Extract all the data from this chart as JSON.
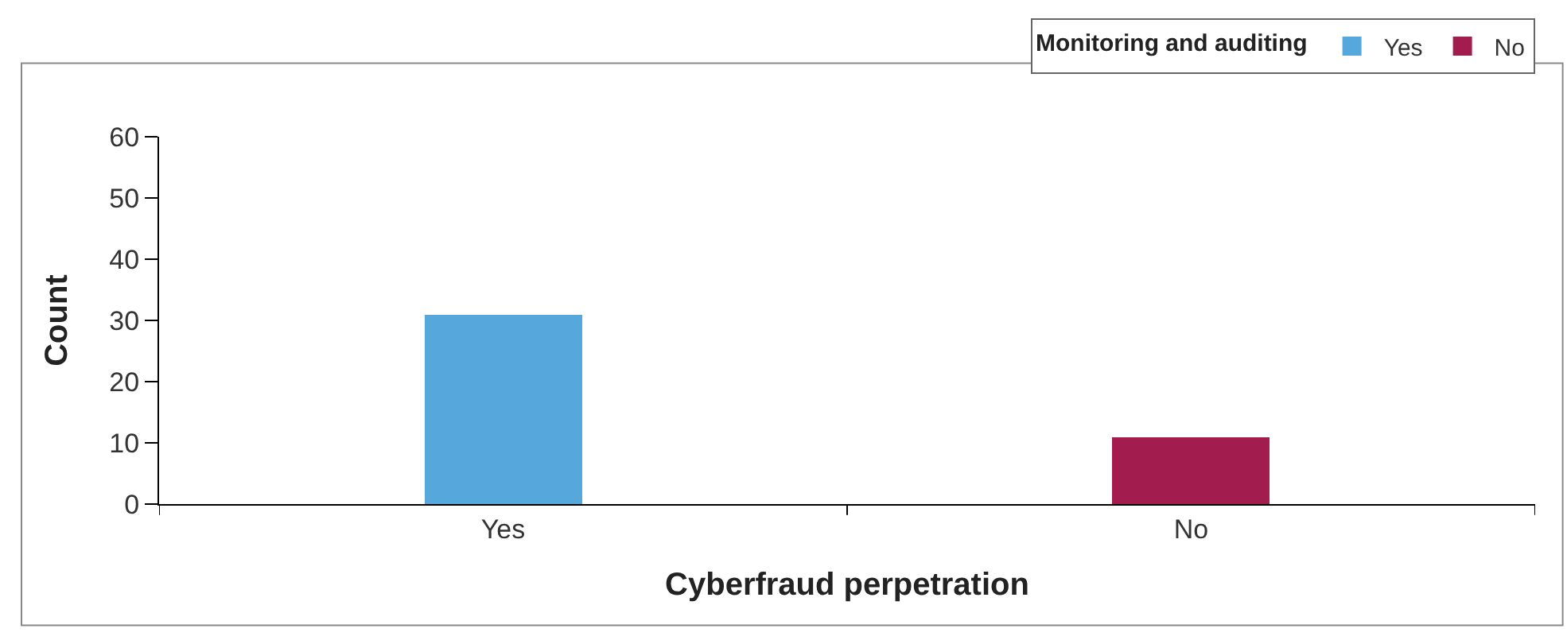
{
  "chart_data": {
    "type": "bar",
    "xlabel": "Cyberfraud perpetration",
    "ylabel": "Count",
    "legend_title": "Monitoring and auditing",
    "categories": [
      "Yes",
      "No"
    ],
    "series": [
      {
        "name": "Yes",
        "color": "#56a8dc",
        "values": [
          31,
          null
        ]
      },
      {
        "name": "No",
        "color": "#a21c4e",
        "values": [
          null,
          11
        ]
      }
    ],
    "ylim": [
      0,
      60
    ],
    "yticks": [
      0,
      10,
      20,
      30,
      40,
      50,
      60
    ],
    "grid": false,
    "legend": "top right"
  }
}
